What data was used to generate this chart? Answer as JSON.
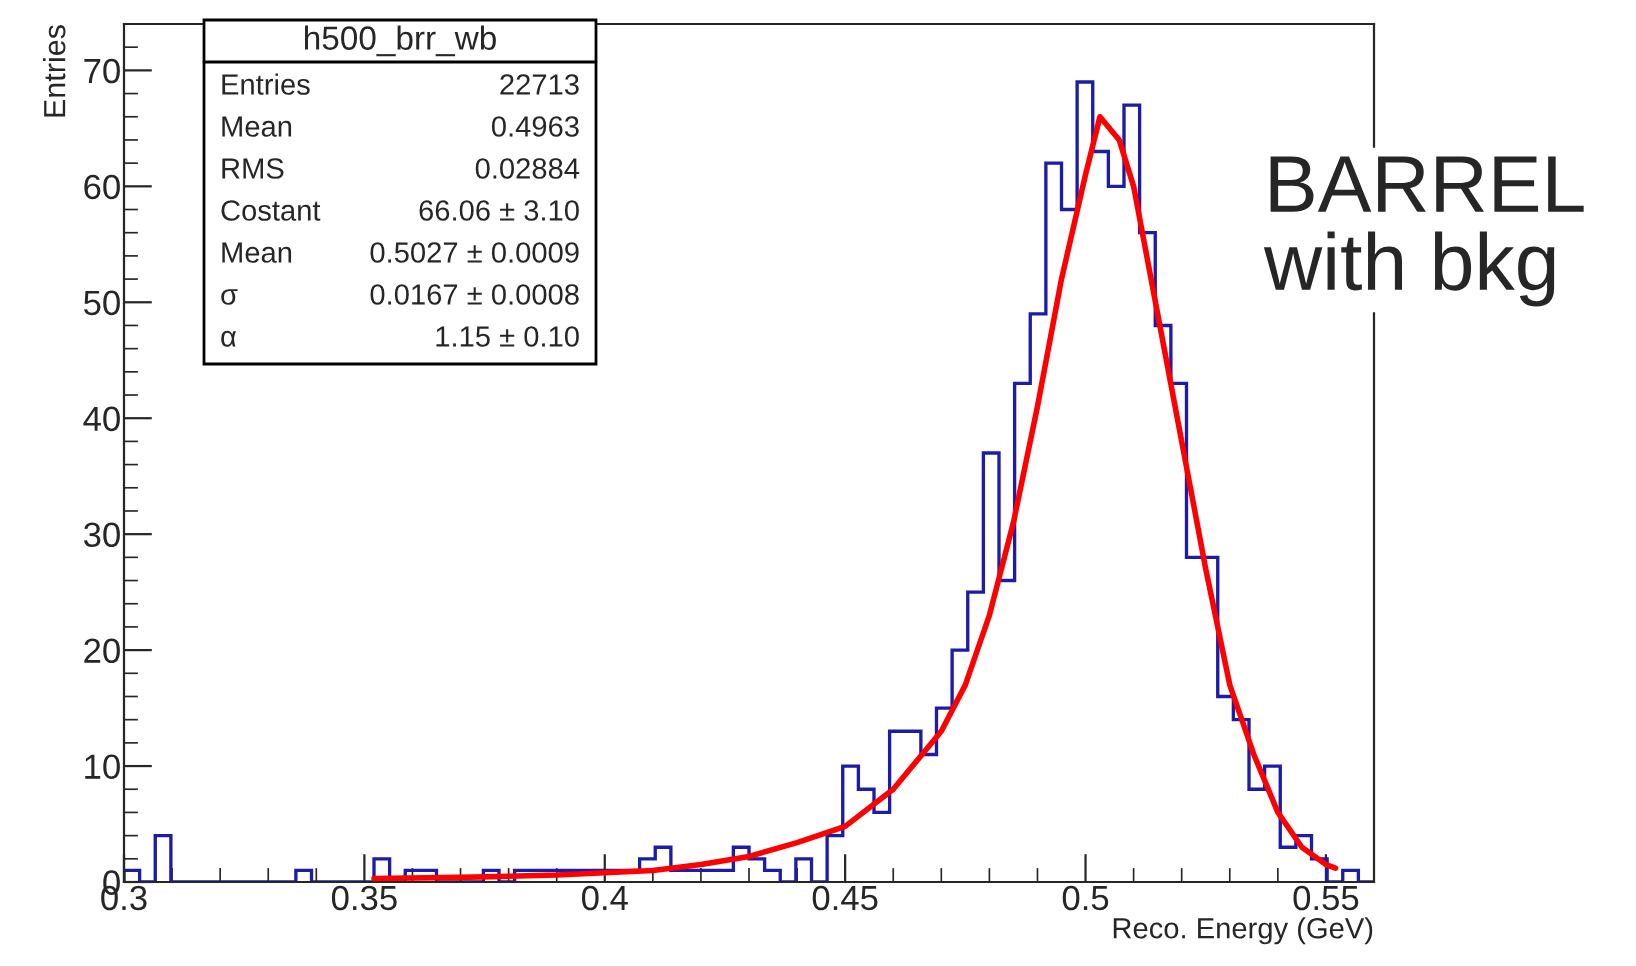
{
  "chart_data": {
    "type": "histogram",
    "title": "h500_brr_wb",
    "xlabel": "Reco. Energy (GeV)",
    "ylabel": "Entries",
    "bins": [
      0.3,
      0.30325,
      0.3065,
      0.30975,
      0.313,
      0.31625,
      0.3195,
      0.32275,
      0.326,
      0.32925,
      0.3325,
      0.33575,
      0.339,
      0.34225,
      0.3455,
      0.34875,
      0.352,
      0.35525,
      0.3585,
      0.36175,
      0.365,
      0.36825,
      0.3715,
      0.37475,
      0.378,
      0.38125,
      0.3845,
      0.38775,
      0.391,
      0.39425,
      0.3975,
      0.40075,
      0.404,
      0.40725,
      0.4105,
      0.41375,
      0.417,
      0.42025,
      0.4235,
      0.42675,
      0.43,
      0.43325,
      0.4365,
      0.43975,
      0.443,
      0.44625,
      0.4495,
      0.45275,
      0.456,
      0.45925,
      0.4625,
      0.46575,
      0.469,
      0.47225,
      0.4755,
      0.47875,
      0.482,
      0.48525,
      0.4885,
      0.49175,
      0.495,
      0.49825,
      0.5015,
      0.50475,
      0.508,
      0.51125,
      0.5145,
      0.51775,
      0.521,
      0.52425,
      0.5275,
      0.53075,
      0.534,
      0.53725,
      0.5405,
      0.54375,
      0.547,
      0.55025,
      0.5535,
      0.55675,
      0.56
    ],
    "series": [
      {
        "type": "histogram",
        "color": "#1c1ca8",
        "values": [
          1,
          0,
          4,
          0,
          0,
          0,
          0,
          0,
          0,
          0,
          0,
          1,
          0,
          0,
          0,
          0,
          2,
          0,
          1,
          1,
          0,
          0,
          0,
          1,
          0,
          1,
          1,
          1,
          1,
          1,
          1,
          1,
          1,
          2,
          3,
          1,
          1,
          1,
          1,
          3,
          2,
          1,
          0,
          2,
          0,
          4,
          10,
          8,
          6,
          13,
          13,
          11,
          15,
          20,
          25,
          37,
          26,
          43,
          49,
          62,
          58,
          69,
          63,
          60,
          67,
          56,
          48,
          43,
          28,
          28,
          16,
          14,
          8,
          10,
          3,
          4,
          2,
          0,
          1,
          0
        ]
      },
      {
        "type": "line",
        "color": "#ff0000",
        "x": [
          0.352,
          0.37,
          0.39,
          0.41,
          0.42,
          0.43,
          0.44,
          0.45,
          0.46,
          0.47,
          0.475,
          0.48,
          0.485,
          0.49,
          0.495,
          0.5,
          0.503,
          0.507,
          0.51,
          0.515,
          0.52,
          0.525,
          0.53,
          0.535,
          0.54,
          0.545,
          0.55,
          0.552
        ],
        "values": [
          0.3,
          0.4,
          0.6,
          1,
          1.5,
          2.2,
          3.4,
          4.8,
          8,
          13,
          17,
          23,
          31,
          41,
          52,
          61,
          66,
          64,
          60,
          49,
          38,
          27,
          17,
          11,
          6,
          3,
          1.5,
          1.2
        ]
      }
    ],
    "xlim": [
      0.3,
      0.56
    ],
    "xticks": [
      0.3,
      0.35,
      0.4,
      0.45,
      0.5,
      0.55
    ],
    "ylim": [
      0,
      74
    ],
    "yticks": [
      0,
      10,
      20,
      30,
      40,
      50,
      60,
      70
    ],
    "grid": false,
    "legend": false,
    "annotations": [
      "Entries",
      "22713",
      "Mean",
      "0.4963",
      "RMS",
      "0.02884",
      "Costant",
      "66.06 ± 3.10",
      "Mean",
      "0.5027 ± 0.0009",
      "σ",
      "0.0167 ± 0.0008",
      "α",
      "1.15 ± 0.10",
      "BARREL\nwith bkg"
    ]
  }
}
